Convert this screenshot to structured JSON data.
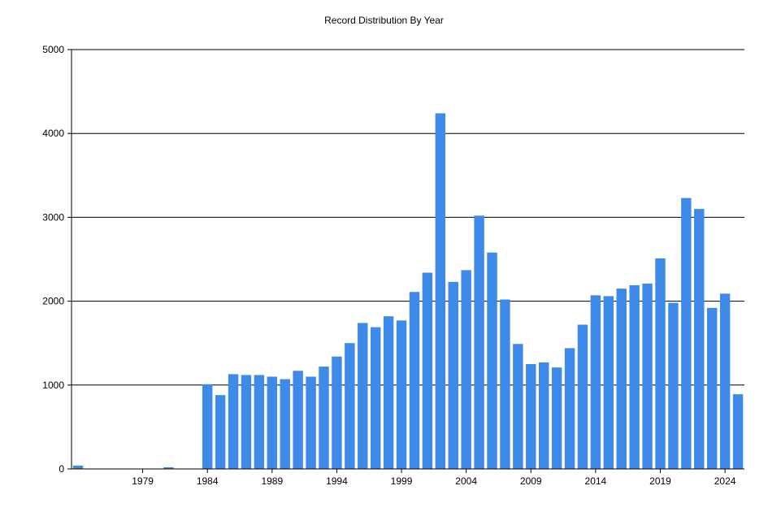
{
  "chart_data": {
    "type": "bar",
    "title": "Record Distribution By Year",
    "xlabel": "",
    "ylabel": "",
    "ylim": [
      0,
      5000
    ],
    "yticks": [
      0,
      1000,
      2000,
      3000,
      4000,
      5000
    ],
    "xtick_labels": [
      "1979",
      "1984",
      "1989",
      "1994",
      "1999",
      "2004",
      "2009",
      "2014",
      "2019",
      "2024"
    ],
    "grid": "horizontal",
    "bar_color": "#3d8ae9",
    "x": [
      1974,
      1975,
      1976,
      1977,
      1978,
      1979,
      1980,
      1981,
      1982,
      1983,
      1984,
      1985,
      1986,
      1987,
      1988,
      1989,
      1990,
      1991,
      1992,
      1993,
      1994,
      1995,
      1996,
      1997,
      1998,
      1999,
      2000,
      2001,
      2002,
      2003,
      2004,
      2005,
      2006,
      2007,
      2008,
      2009,
      2010,
      2011,
      2012,
      2013,
      2014,
      2015,
      2016,
      2017,
      2018,
      2019,
      2020,
      2021,
      2022,
      2023,
      2024,
      2025
    ],
    "values": [
      40,
      0,
      0,
      0,
      0,
      0,
      0,
      20,
      0,
      0,
      1010,
      880,
      1130,
      1120,
      1120,
      1100,
      1070,
      1170,
      1100,
      1220,
      1340,
      1500,
      1740,
      1690,
      1820,
      1770,
      2110,
      2340,
      4240,
      2230,
      2370,
      3020,
      2580,
      2020,
      1490,
      1250,
      1270,
      1210,
      1440,
      1720,
      2070,
      2060,
      2150,
      2190,
      2210,
      2510,
      1980,
      3230,
      3100,
      1920,
      2090,
      890
    ]
  }
}
